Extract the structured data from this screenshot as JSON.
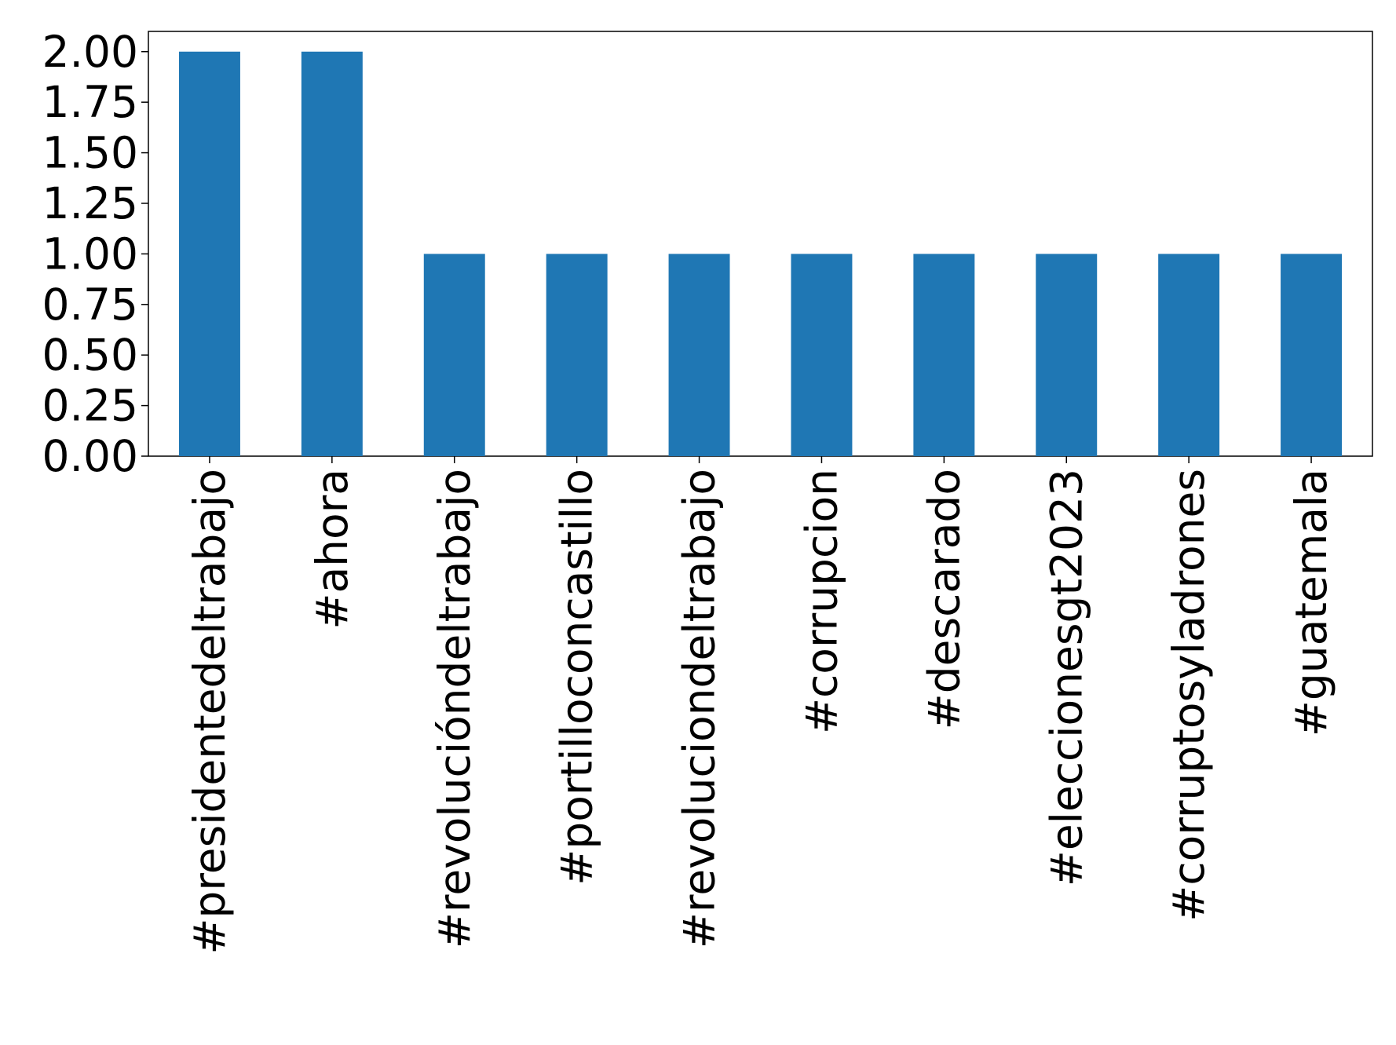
{
  "chart_data": {
    "type": "bar",
    "categories": [
      "#presidentedeltrabajo",
      "#ahora",
      "#revolucióndeltrabajo",
      "#portilloconcastillo",
      "#revoluciondeltrabajo",
      "#corrupcion",
      "#descarado",
      "#eleccionesgt2023",
      "#corruptosyladrones",
      "#guatemala"
    ],
    "values": [
      2,
      2,
      1,
      1,
      1,
      1,
      1,
      1,
      1,
      1
    ],
    "color": "#1f77b4",
    "ylim": [
      0,
      2.1
    ],
    "yticks": [
      {
        "value": 0,
        "label": "0.00"
      },
      {
        "value": 0.25,
        "label": "0.25"
      },
      {
        "value": 0.5,
        "label": "0.50"
      },
      {
        "value": 0.75,
        "label": "0.75"
      },
      {
        "value": 1,
        "label": "1.00"
      },
      {
        "value": 1.25,
        "label": "1.25"
      },
      {
        "value": 1.5,
        "label": "1.50"
      },
      {
        "value": 1.75,
        "label": "1.75"
      },
      {
        "value": 2,
        "label": "2.00"
      }
    ],
    "grid": false
  }
}
